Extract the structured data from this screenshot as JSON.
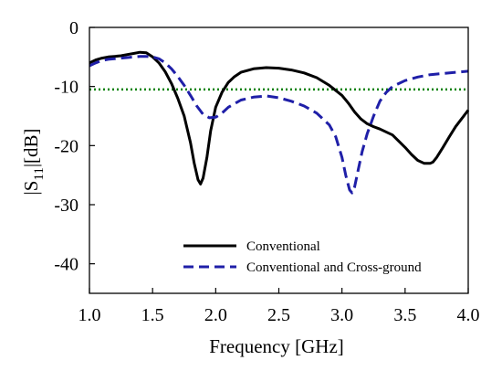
{
  "chart_data": {
    "type": "line",
    "xlabel": "Frequency [GHz]",
    "ylabel": {
      "pre": "|S",
      "sub": "11",
      "post": "|[dB]"
    },
    "xlim": [
      1.0,
      4.0
    ],
    "ylim": [
      -45,
      0
    ],
    "xticks": [
      1.0,
      1.5,
      2.0,
      2.5,
      3.0,
      3.5,
      4.0
    ],
    "xtick_labels": [
      "1.0",
      "1.5",
      "2.0",
      "2.5",
      "3.0",
      "3.5",
      "4.0"
    ],
    "yticks": [
      0,
      -10,
      -20,
      -30,
      -40
    ],
    "ytick_labels": [
      "0",
      "-10",
      "-20",
      "-30",
      "-40"
    ],
    "grid": false,
    "legend_position": "bottom-center",
    "reference_line": {
      "y": -10.5,
      "color": "#008000",
      "style": "dotted"
    },
    "series": [
      {
        "name": "Conventional",
        "color": "#000000",
        "style": "solid",
        "x": [
          1.0,
          1.05,
          1.1,
          1.15,
          1.2,
          1.25,
          1.3,
          1.35,
          1.4,
          1.45,
          1.5,
          1.55,
          1.6,
          1.65,
          1.7,
          1.75,
          1.8,
          1.83,
          1.86,
          1.88,
          1.9,
          1.93,
          1.96,
          2.0,
          2.05,
          2.1,
          2.15,
          2.2,
          2.3,
          2.4,
          2.5,
          2.6,
          2.7,
          2.8,
          2.9,
          3.0,
          3.05,
          3.1,
          3.15,
          3.2,
          3.25,
          3.3,
          3.4,
          3.5,
          3.55,
          3.6,
          3.65,
          3.7,
          3.72,
          3.75,
          3.8,
          3.85,
          3.9,
          3.95,
          4.0
        ],
        "y": [
          -6.0,
          -5.5,
          -5.2,
          -5.0,
          -4.9,
          -4.8,
          -4.6,
          -4.4,
          -4.2,
          -4.3,
          -5.0,
          -6.0,
          -7.5,
          -9.5,
          -12.0,
          -15.0,
          -19.5,
          -23.0,
          -25.8,
          -26.5,
          -25.5,
          -22.0,
          -17.5,
          -13.5,
          -11.0,
          -9.3,
          -8.3,
          -7.6,
          -7.0,
          -6.8,
          -6.9,
          -7.2,
          -7.7,
          -8.5,
          -9.8,
          -11.5,
          -12.8,
          -14.3,
          -15.5,
          -16.3,
          -16.8,
          -17.2,
          -18.2,
          -20.3,
          -21.5,
          -22.5,
          -23.0,
          -23.0,
          -22.8,
          -22.0,
          -20.3,
          -18.5,
          -16.8,
          -15.4,
          -14.0
        ]
      },
      {
        "name": "Conventional and Cross-ground",
        "color": "#1f1fa8",
        "style": "dashed",
        "x": [
          1.0,
          1.05,
          1.1,
          1.15,
          1.2,
          1.3,
          1.4,
          1.45,
          1.5,
          1.55,
          1.6,
          1.65,
          1.7,
          1.75,
          1.8,
          1.85,
          1.9,
          1.95,
          2.0,
          2.05,
          2.1,
          2.2,
          2.3,
          2.4,
          2.5,
          2.6,
          2.7,
          2.8,
          2.9,
          2.95,
          3.0,
          3.03,
          3.06,
          3.08,
          3.1,
          3.13,
          3.16,
          3.2,
          3.25,
          3.3,
          3.35,
          3.4,
          3.5,
          3.6,
          3.7,
          3.8,
          3.9,
          4.0
        ],
        "y": [
          -6.5,
          -6.0,
          -5.6,
          -5.4,
          -5.3,
          -5.1,
          -4.9,
          -4.9,
          -5.0,
          -5.3,
          -6.0,
          -7.0,
          -8.3,
          -9.8,
          -11.5,
          -13.3,
          -14.7,
          -15.3,
          -15.2,
          -14.5,
          -13.5,
          -12.3,
          -11.8,
          -11.6,
          -11.9,
          -12.5,
          -13.3,
          -14.5,
          -16.5,
          -18.5,
          -22.0,
          -25.0,
          -27.5,
          -28.0,
          -27.0,
          -24.0,
          -21.0,
          -18.0,
          -15.0,
          -12.5,
          -11.0,
          -10.0,
          -9.0,
          -8.4,
          -8.0,
          -7.8,
          -7.6,
          -7.4
        ]
      }
    ]
  }
}
